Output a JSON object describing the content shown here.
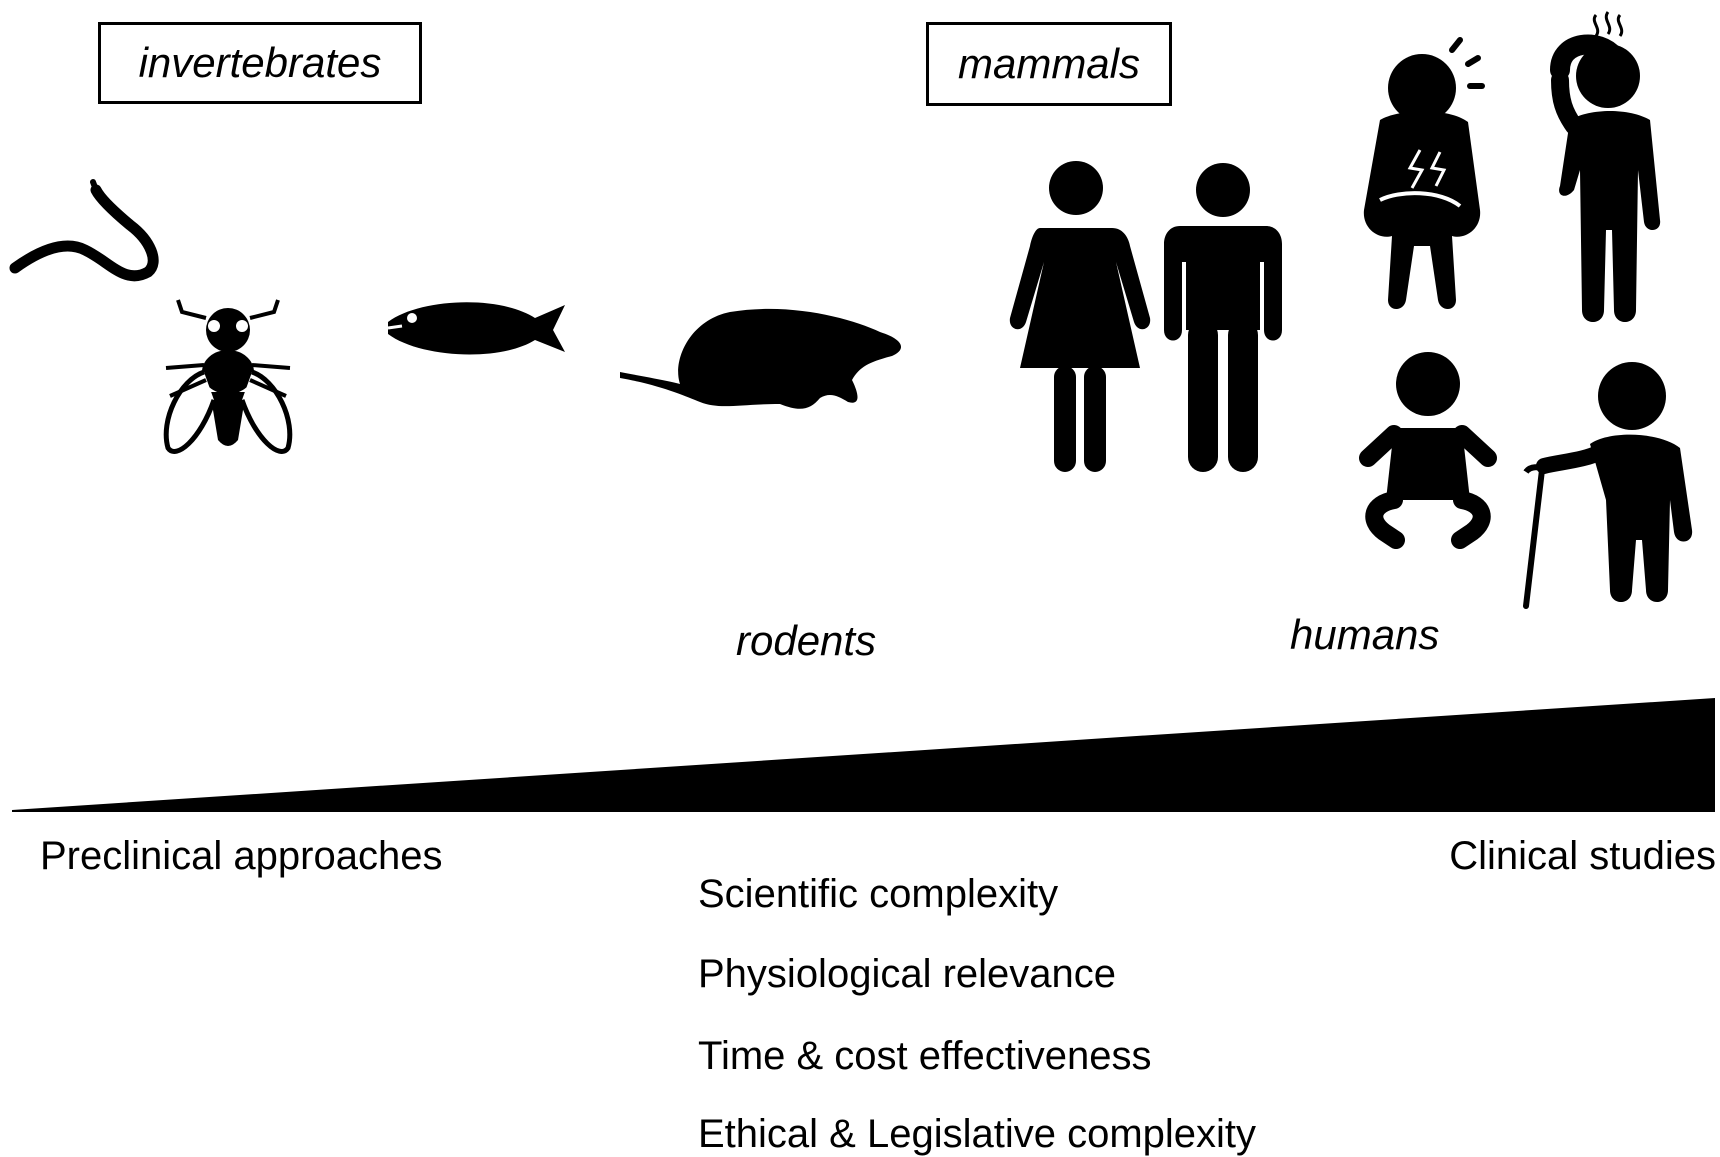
{
  "groups": {
    "invertebrates": "invertebrates",
    "mammals": "mammals",
    "rodents": "rodents",
    "humans": "humans"
  },
  "axis": {
    "left": "Preclinical approaches",
    "right": "Clinical studies"
  },
  "criteria": [
    "Scientific complexity",
    "Physiological relevance",
    "Time & cost effectiveness",
    "Ethical & Legislative complexity"
  ],
  "icons": [
    "worm-icon",
    "fly-icon",
    "fish-icon",
    "rodent-icon",
    "woman-icon",
    "man-icon",
    "sick-person-icon",
    "headache-person-icon",
    "baby-icon",
    "elderly-person-icon"
  ],
  "colors": {
    "ink": "#000000",
    "background": "#ffffff"
  }
}
